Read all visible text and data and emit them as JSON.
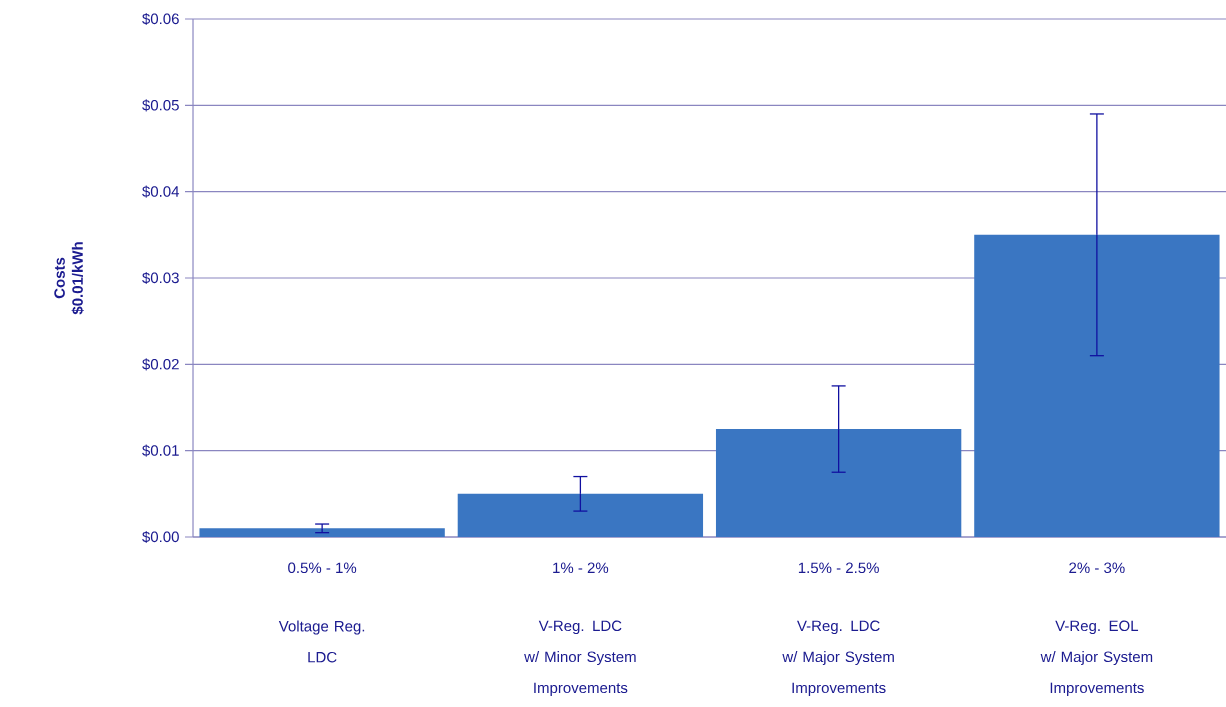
{
  "chart_data": {
    "type": "bar",
    "ylabel": "Costs\n$0.01/kWh",
    "categories": [
      "0.5% - 1%",
      "1% - 2%",
      "1.5% - 2.5%",
      "2% - 3%"
    ],
    "values": [
      0.001,
      0.005,
      0.0125,
      0.035
    ],
    "errors": [
      0.0005,
      0.002,
      0.005,
      0.014
    ],
    "color": "#3a76c2",
    "ylim": [
      0,
      0.06
    ],
    "yticks": [
      {
        "value": 0,
        "label": "$0.00"
      },
      {
        "value": 0.01,
        "label": "$0.01"
      },
      {
        "value": 0.02,
        "label": "$0.02"
      },
      {
        "value": 0.03,
        "label": "$0.03"
      },
      {
        "value": 0.04,
        "label": "$0.04"
      },
      {
        "value": 0.05,
        "label": "$0.05"
      },
      {
        "value": 0.06,
        "label": "$0.06"
      }
    ],
    "grid": "y",
    "annotations": [
      "Voltage Reg.\nLDC",
      "V-Reg. LDC\nw/ Minor System\nImprovements",
      "V-Reg. LDC\nw/ Major System\nImprovements",
      "V-Reg. EOL\nw/ Major System\nImprovements"
    ]
  }
}
